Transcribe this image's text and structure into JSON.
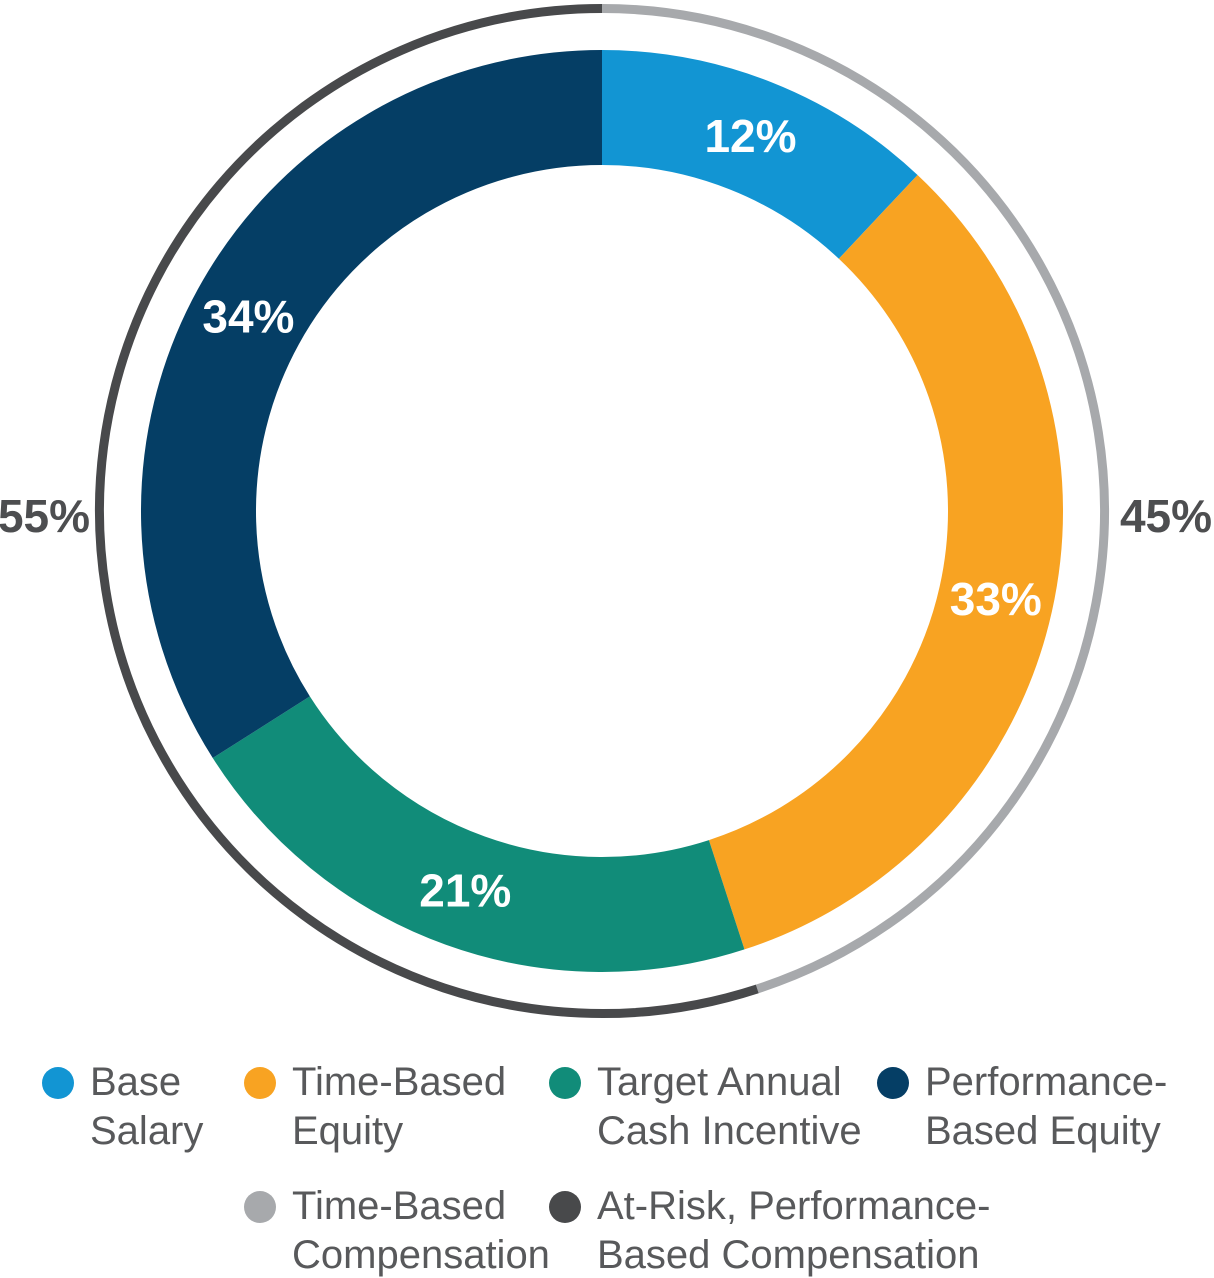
{
  "page": {
    "background": "#FFFFFF"
  },
  "chart_data": {
    "type": "pie",
    "variant": "donut-with-outer-ring",
    "title": "",
    "start_angle_deg": 0,
    "direction": "clockwise",
    "inner_series": {
      "name": "Pay mix components",
      "segments": [
        {
          "label": "Base Salary",
          "value": 12,
          "display": "12%",
          "color": "#1295D3"
        },
        {
          "label": "Time-Based Equity",
          "value": 33,
          "display": "33%",
          "color": "#F8A322"
        },
        {
          "label": "Target Annual Cash Incentive",
          "value": 21,
          "display": "21%",
          "color": "#118C79"
        },
        {
          "label": "Performance-Based Equity",
          "value": 34,
          "display": "34%",
          "color": "#053E65"
        }
      ]
    },
    "outer_ring": {
      "name": "Compensation type",
      "segments": [
        {
          "label": "Time-Based Compensation",
          "value": 45,
          "display": "45%",
          "color": "#A7A9AC",
          "label_position": "right"
        },
        {
          "label": "At-Risk, Performance-Based Compensation",
          "value": 55,
          "display": "55%",
          "color": "#48494B",
          "label_position": "left"
        }
      ]
    },
    "value_label_color_inner": "#FFFFFF",
    "value_label_color_outer": "#4D4E50",
    "legend_position": "bottom",
    "grid": false
  },
  "legend": {
    "text_color": "#58595B",
    "items": [
      {
        "lines": [
          "Base",
          "Salary"
        ],
        "color": "#1295D3"
      },
      {
        "lines": [
          "Time-Based",
          "Equity"
        ],
        "color": "#F8A322"
      },
      {
        "lines": [
          "Target Annual",
          "Cash Incentive"
        ],
        "color": "#118C79"
      },
      {
        "lines": [
          "Performance-",
          "Based Equity"
        ],
        "color": "#053E65"
      },
      {
        "lines": [
          "Time-Based",
          "Compensation"
        ],
        "color": "#A7A9AC"
      },
      {
        "lines": [
          "At-Risk, Performance-",
          "Based Compensation"
        ],
        "color": "#48494B"
      }
    ]
  }
}
